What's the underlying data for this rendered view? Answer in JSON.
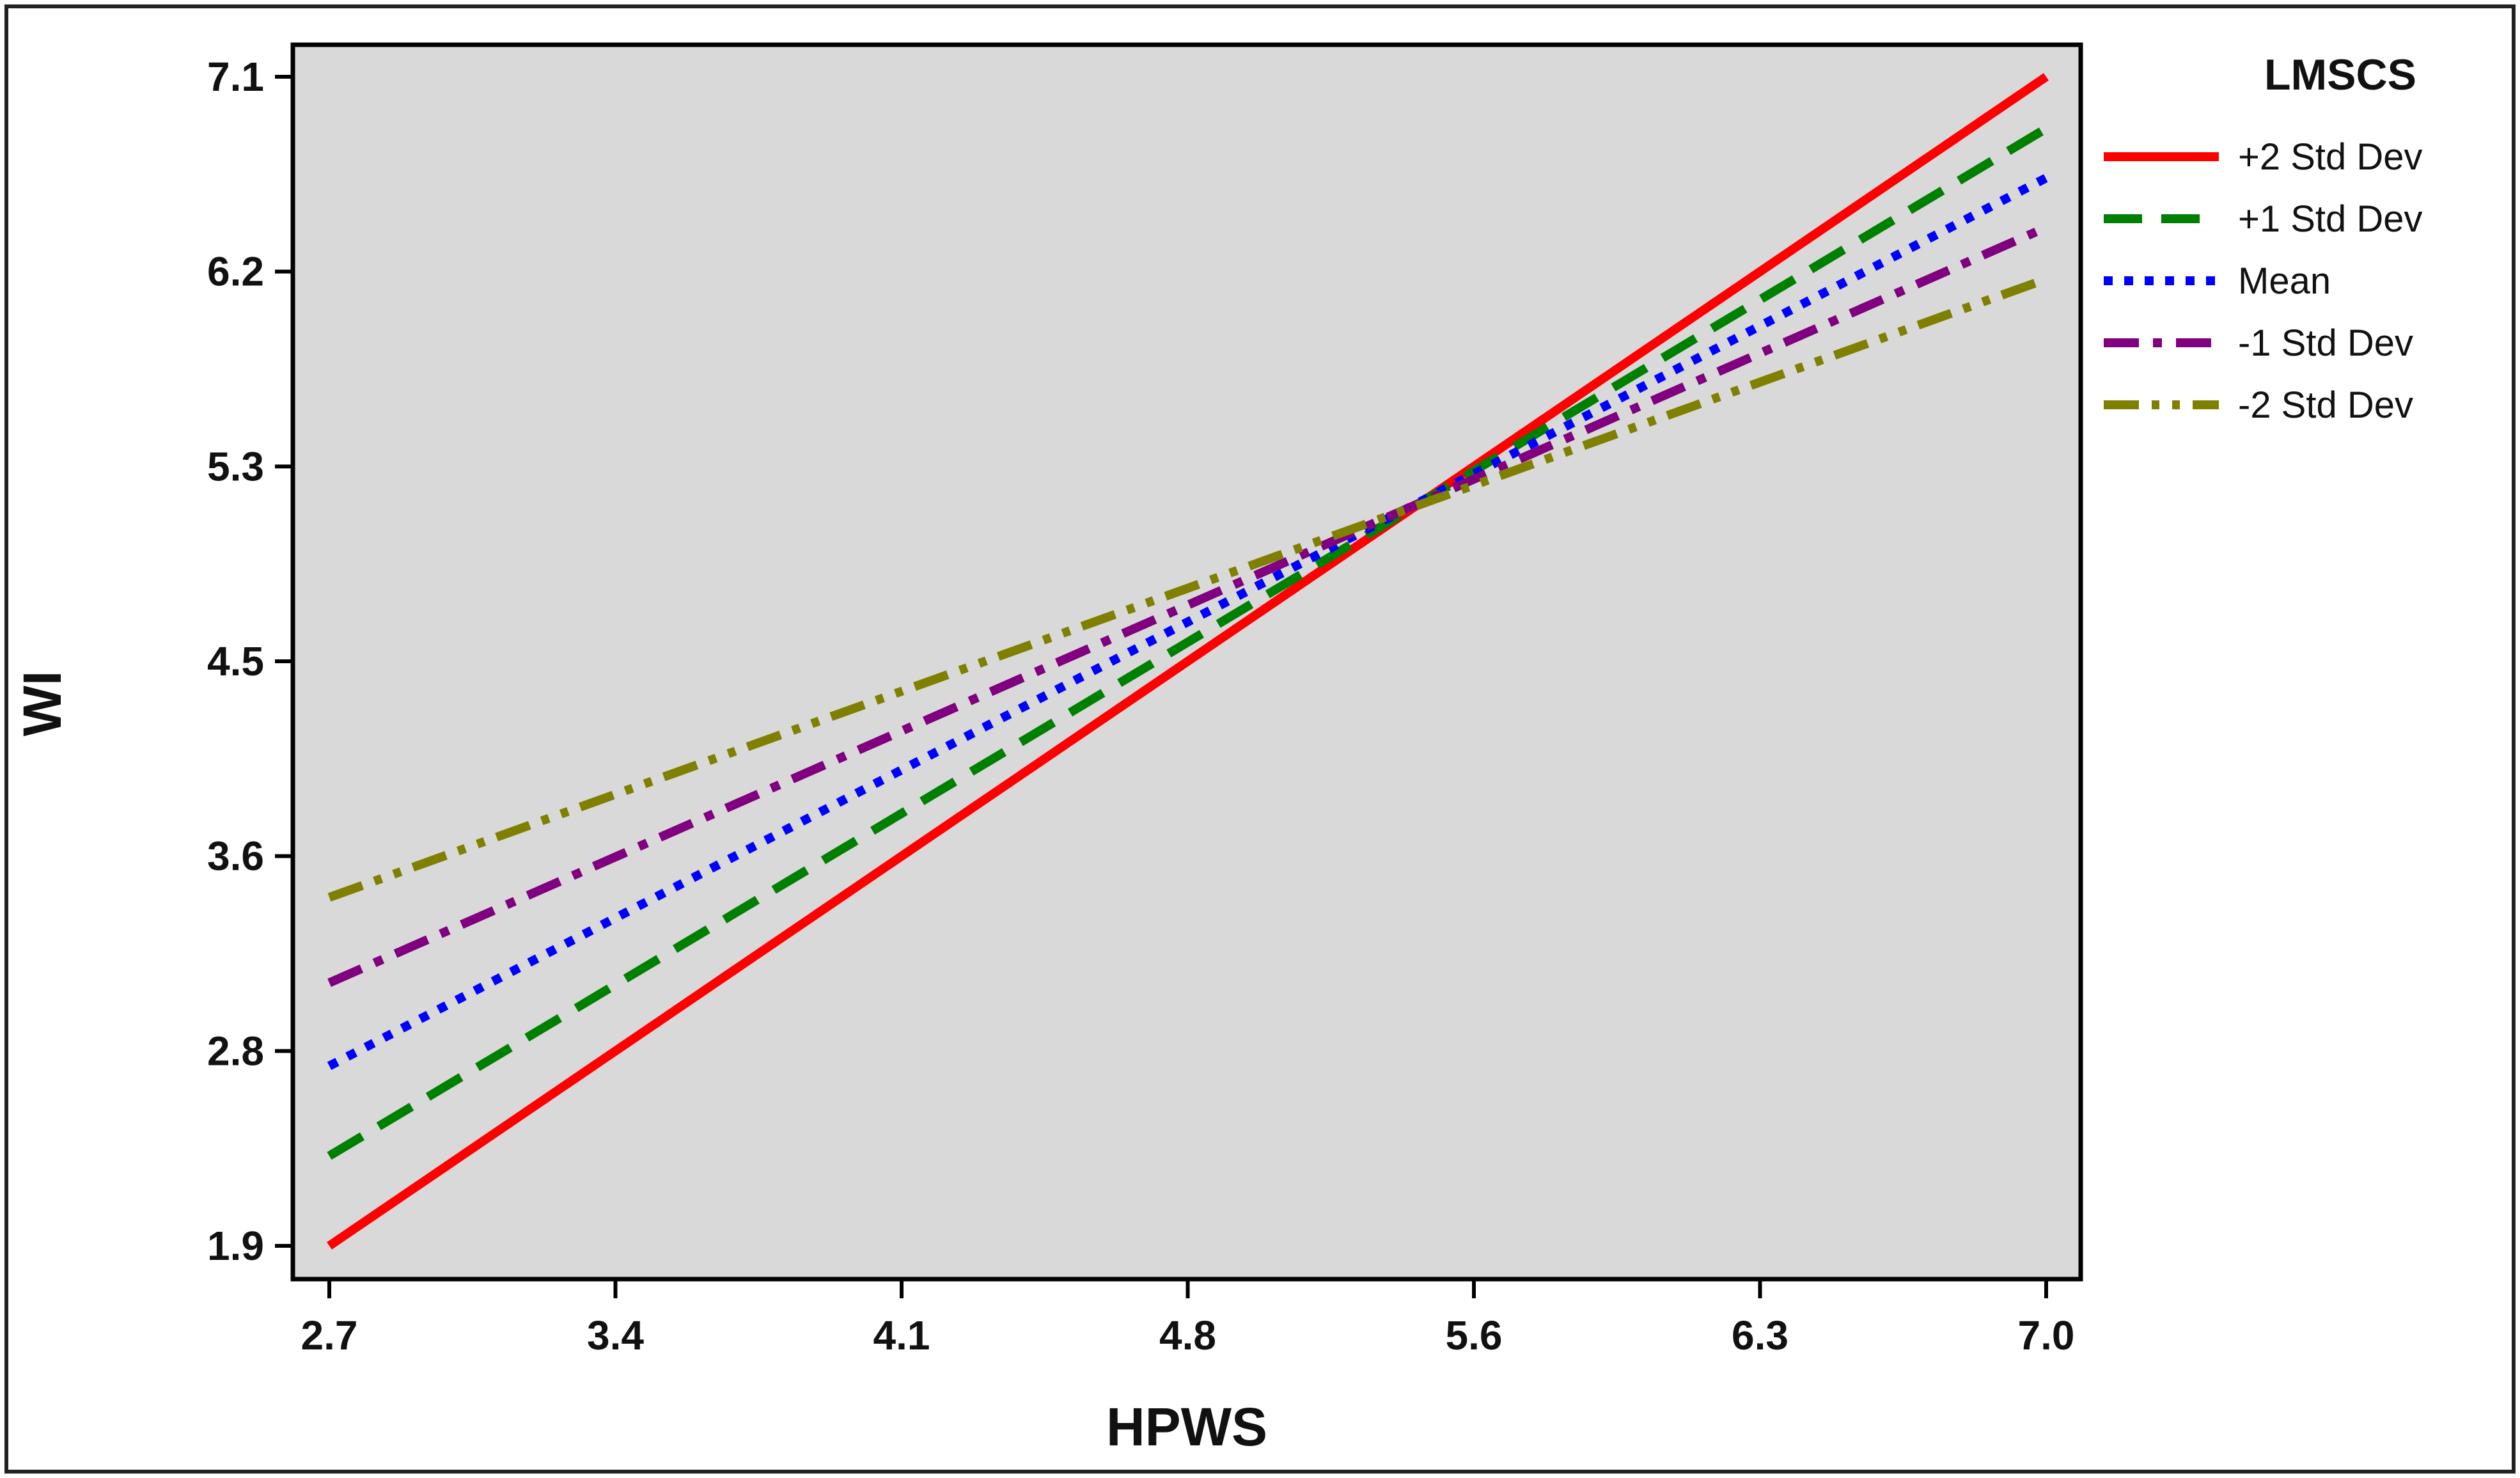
{
  "chart_data": {
    "type": "line",
    "xlabel": "HPWS",
    "ylabel": "WI",
    "x_ticks": [
      "2.7",
      "3.4",
      "4.1",
      "4.8",
      "5.6",
      "6.3",
      "7.0"
    ],
    "y_ticks": [
      "1.9",
      "2.8",
      "3.6",
      "4.5",
      "5.3",
      "6.2",
      "7.1"
    ],
    "xlim": [
      2.7,
      7.0
    ],
    "ylim": [
      1.9,
      7.1
    ],
    "grid": false,
    "legend_title": "LMSCS",
    "legend_position": "right",
    "plot_background": "#d9d9d9",
    "series": [
      {
        "name": "+2 Std Dev",
        "x": [
          2.7,
          7.0
        ],
        "y": [
          1.9,
          7.1
        ],
        "color": "#ff0000",
        "dash": "solid"
      },
      {
        "name": "+1 Std Dev",
        "x": [
          2.7,
          7.0
        ],
        "y": [
          2.3,
          6.87
        ],
        "color": "#008000",
        "dash": "dashed"
      },
      {
        "name": "Mean",
        "x": [
          2.7,
          7.0
        ],
        "y": [
          2.7,
          6.65
        ],
        "color": "#0000ff",
        "dash": "dotted"
      },
      {
        "name": "-1 Std Dev",
        "x": [
          2.7,
          7.0
        ],
        "y": [
          3.07,
          6.43
        ],
        "color": "#800080",
        "dash": "dashdot"
      },
      {
        "name": "-2 Std Dev",
        "x": [
          2.7,
          7.0
        ],
        "y": [
          3.45,
          6.2
        ],
        "color": "#808000",
        "dash": "dashdotdot"
      }
    ]
  }
}
